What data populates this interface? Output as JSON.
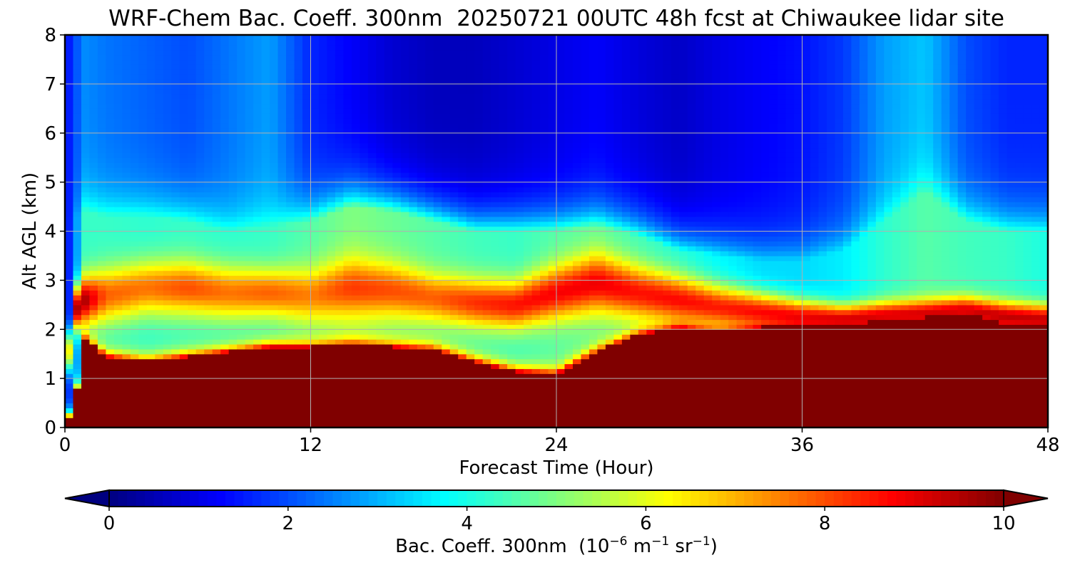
{
  "chart_data": {
    "type": "heatmap",
    "title": "WRF-Chem Bac. Coeff. 300nm  20250721 00UTC 48h fcst at Chiwaukee lidar site",
    "xlabel": "Forecast Time (Hour)",
    "ylabel": "Alt AGL (km)",
    "xlim": [
      0,
      48
    ],
    "ylim": [
      0,
      8
    ],
    "x_ticks": [
      0,
      12,
      24,
      36,
      48
    ],
    "y_ticks": [
      0,
      1,
      2,
      3,
      4,
      5,
      6,
      7,
      8
    ],
    "grid": true,
    "colormap": "jet",
    "colorbar": {
      "orientation": "horizontal",
      "range": [
        0,
        10
      ],
      "ticks": [
        0,
        2,
        4,
        6,
        8,
        10
      ],
      "extend": "both",
      "label_parts": [
        {
          "text": "Bac. Coeff. 300nm  (10"
        },
        {
          "text": "−6",
          "sup": true
        },
        {
          "text": " m"
        },
        {
          "text": "−1",
          "sup": true
        },
        {
          "text": " sr"
        },
        {
          "text": "−1",
          "sup": true
        },
        {
          "text": ")"
        }
      ]
    },
    "profile_times": [
      0,
      0.5,
      1,
      2,
      4,
      6,
      8,
      10,
      12,
      14,
      16,
      18,
      20,
      22,
      24,
      26,
      28,
      30,
      32,
      34,
      36,
      38,
      40,
      42,
      44,
      46,
      48
    ],
    "surface_layer_top_km": [
      0,
      0.5,
      1.8,
      1.45,
      1.35,
      1.45,
      1.55,
      1.65,
      1.65,
      1.7,
      1.65,
      1.6,
      1.35,
      1.15,
      1.1,
      1.55,
      1.9,
      2.05,
      1.95,
      2.05,
      2.1,
      2.05,
      2.25,
      2.25,
      2.35,
      2.1,
      2.05
    ],
    "elevated_layer_center_km": [
      1.0,
      2.4,
      2.6,
      2.7,
      2.85,
      2.85,
      2.75,
      2.75,
      2.7,
      2.85,
      2.8,
      2.65,
      2.55,
      2.5,
      2.75,
      2.95,
      2.75,
      2.6,
      2.45,
      2.35,
      2.25,
      2.2,
      2.25,
      2.3,
      2.35,
      2.25,
      2.2
    ],
    "elevated_layer_peak": [
      4.0,
      9.5,
      9.5,
      7.8,
      7.6,
      8.0,
      7.6,
      7.8,
      7.5,
      8.2,
      8.0,
      7.8,
      8.3,
      8.6,
      8.8,
      8.9,
      8.6,
      8.7,
      8.5,
      8.7,
      8.9,
      9.2,
      9.3,
      9.3,
      9.5,
      9.5,
      9.4
    ],
    "elevated_layer_width_km": [
      0.4,
      0.45,
      0.5,
      0.55,
      0.55,
      0.55,
      0.55,
      0.5,
      0.55,
      0.6,
      0.55,
      0.5,
      0.5,
      0.5,
      0.55,
      0.6,
      0.55,
      0.5,
      0.45,
      0.4,
      0.35,
      0.3,
      0.3,
      0.3,
      0.3,
      0.3,
      0.3
    ],
    "midlevel_value": [
      1.0,
      2.5,
      4.3,
      4.3,
      4.2,
      4.3,
      4.2,
      4.3,
      4.6,
      5.0,
      4.8,
      4.6,
      4.4,
      4.3,
      4.6,
      4.7,
      4.4,
      4.1,
      3.7,
      3.4,
      3.4,
      3.6,
      4.2,
      4.6,
      4.4,
      4.3,
      4.0
    ],
    "upper_value": [
      1.2,
      2.0,
      2.6,
      2.4,
      2.2,
      2.0,
      2.4,
      2.8,
      1.6,
      1.2,
      0.8,
      0.6,
      0.6,
      0.8,
      1.0,
      1.2,
      0.9,
      0.7,
      1.0,
      1.2,
      1.4,
      1.8,
      2.8,
      3.2,
      2.0,
      1.6,
      1.6
    ],
    "aerosol_top_km": [
      4.0,
      4.3,
      4.4,
      4.3,
      4.3,
      4.2,
      4.0,
      4.1,
      4.2,
      4.5,
      4.4,
      4.2,
      4.0,
      4.0,
      4.0,
      4.1,
      3.9,
      3.6,
      3.5,
      3.4,
      3.4,
      3.6,
      4.2,
      4.8,
      4.2,
      4.0,
      4.0
    ]
  }
}
